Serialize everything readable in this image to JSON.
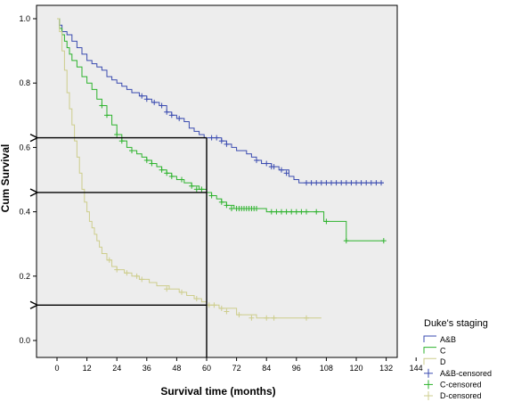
{
  "chart_data": {
    "type": "line",
    "subtype": "kaplan-meier step",
    "title": "",
    "xlabel": "Survival time (months)",
    "ylabel": "Cum Survival",
    "xlim": [
      -6,
      148
    ],
    "ylim": [
      -0.06,
      1.02
    ],
    "xticks": [
      "0",
      "12",
      "24",
      "36",
      "48",
      "60",
      "72",
      "84",
      "96",
      "108",
      "120",
      "132",
      "144"
    ],
    "yticks": [
      "0.0",
      "0.2",
      "0.4",
      "0.6",
      "0.8",
      "1.0"
    ],
    "plot_background": "#ededed",
    "grid": false,
    "legend_title": "Duke's staging",
    "legend_position": "bottom-right outside plot",
    "legend": [
      {
        "label": "A&B",
        "color": "#3a4bb0",
        "marker": "step"
      },
      {
        "label": "C",
        "color": "#2db32d",
        "marker": "step"
      },
      {
        "label": "D",
        "color": "#cdcd8c",
        "marker": "step"
      },
      {
        "label": "A&B-censored",
        "color": "#3a4bb0",
        "marker": "plus"
      },
      {
        "label": "C-censored",
        "color": "#2db32d",
        "marker": "plus"
      },
      {
        "label": "D-censored",
        "color": "#cdcd8c",
        "marker": "plus"
      }
    ],
    "series": [
      {
        "name": "A&B",
        "color": "#3a4bb0",
        "steps": [
          [
            0,
            1.0
          ],
          [
            1,
            0.98
          ],
          [
            2,
            0.96
          ],
          [
            4,
            0.95
          ],
          [
            6,
            0.93
          ],
          [
            8,
            0.91
          ],
          [
            10,
            0.89
          ],
          [
            12,
            0.87
          ],
          [
            14,
            0.86
          ],
          [
            16,
            0.85
          ],
          [
            18,
            0.84
          ],
          [
            20,
            0.82
          ],
          [
            22,
            0.81
          ],
          [
            24,
            0.8
          ],
          [
            26,
            0.79
          ],
          [
            28,
            0.78
          ],
          [
            30,
            0.77
          ],
          [
            33,
            0.76
          ],
          [
            36,
            0.75
          ],
          [
            38,
            0.74
          ],
          [
            41,
            0.73
          ],
          [
            44,
            0.71
          ],
          [
            46,
            0.7
          ],
          [
            48,
            0.69
          ],
          [
            51,
            0.68
          ],
          [
            53,
            0.66
          ],
          [
            55,
            0.65
          ],
          [
            57,
            0.64
          ],
          [
            59,
            0.63
          ],
          [
            66,
            0.62
          ],
          [
            68,
            0.61
          ],
          [
            70,
            0.6
          ],
          [
            72,
            0.59
          ],
          [
            76,
            0.58
          ],
          [
            78,
            0.57
          ],
          [
            80,
            0.56
          ],
          [
            82,
            0.55
          ],
          [
            86,
            0.54
          ],
          [
            89,
            0.53
          ],
          [
            93,
            0.51
          ],
          [
            95,
            0.5
          ],
          [
            97,
            0.49
          ],
          [
            131,
            0.49
          ]
        ],
        "censored": [
          [
            34,
            0.76
          ],
          [
            36,
            0.75
          ],
          [
            39,
            0.74
          ],
          [
            42,
            0.73
          ],
          [
            44,
            0.71
          ],
          [
            46,
            0.7
          ],
          [
            49,
            0.69
          ],
          [
            62,
            0.63
          ],
          [
            64,
            0.63
          ],
          [
            66,
            0.62
          ],
          [
            68,
            0.61
          ],
          [
            80,
            0.56
          ],
          [
            84,
            0.55
          ],
          [
            86,
            0.54
          ],
          [
            87,
            0.54
          ],
          [
            90,
            0.53
          ],
          [
            92,
            0.52
          ],
          [
            100,
            0.49
          ],
          [
            102,
            0.49
          ],
          [
            104,
            0.49
          ],
          [
            106,
            0.49
          ],
          [
            108,
            0.49
          ],
          [
            110,
            0.49
          ],
          [
            112,
            0.49
          ],
          [
            114,
            0.49
          ],
          [
            116,
            0.49
          ],
          [
            118,
            0.49
          ],
          [
            120,
            0.49
          ],
          [
            122,
            0.49
          ],
          [
            124,
            0.49
          ],
          [
            126,
            0.49
          ],
          [
            128,
            0.49
          ],
          [
            130,
            0.49
          ]
        ]
      },
      {
        "name": "C",
        "color": "#2db32d",
        "steps": [
          [
            0,
            1.0
          ],
          [
            1,
            0.97
          ],
          [
            2,
            0.95
          ],
          [
            3,
            0.93
          ],
          [
            4,
            0.91
          ],
          [
            5,
            0.89
          ],
          [
            6,
            0.87
          ],
          [
            8,
            0.85
          ],
          [
            10,
            0.82
          ],
          [
            12,
            0.8
          ],
          [
            14,
            0.78
          ],
          [
            16,
            0.75
          ],
          [
            18,
            0.73
          ],
          [
            20,
            0.7
          ],
          [
            22,
            0.67
          ],
          [
            24,
            0.64
          ],
          [
            26,
            0.62
          ],
          [
            28,
            0.6
          ],
          [
            30,
            0.59
          ],
          [
            32,
            0.58
          ],
          [
            34,
            0.57
          ],
          [
            36,
            0.56
          ],
          [
            38,
            0.55
          ],
          [
            40,
            0.54
          ],
          [
            42,
            0.53
          ],
          [
            44,
            0.52
          ],
          [
            46,
            0.51
          ],
          [
            48,
            0.5
          ],
          [
            51,
            0.49
          ],
          [
            54,
            0.48
          ],
          [
            57,
            0.47
          ],
          [
            60,
            0.46
          ],
          [
            62,
            0.45
          ],
          [
            64,
            0.44
          ],
          [
            66,
            0.43
          ],
          [
            68,
            0.42
          ],
          [
            71,
            0.41
          ],
          [
            76,
            0.41
          ],
          [
            84,
            0.4
          ],
          [
            90,
            0.4
          ],
          [
            98,
            0.4
          ],
          [
            107,
            0.37
          ],
          [
            116,
            0.31
          ],
          [
            131,
            0.31
          ]
        ],
        "censored": [
          [
            18,
            0.73
          ],
          [
            20,
            0.7
          ],
          [
            24,
            0.64
          ],
          [
            26,
            0.62
          ],
          [
            30,
            0.59
          ],
          [
            36,
            0.56
          ],
          [
            38,
            0.55
          ],
          [
            42,
            0.53
          ],
          [
            44,
            0.52
          ],
          [
            46,
            0.51
          ],
          [
            50,
            0.5
          ],
          [
            54,
            0.48
          ],
          [
            56,
            0.47
          ],
          [
            58,
            0.47
          ],
          [
            60,
            0.46
          ],
          [
            62,
            0.45
          ],
          [
            66,
            0.43
          ],
          [
            68,
            0.42
          ],
          [
            70,
            0.41
          ],
          [
            72,
            0.41
          ],
          [
            73,
            0.41
          ],
          [
            74,
            0.41
          ],
          [
            75,
            0.41
          ],
          [
            76,
            0.41
          ],
          [
            77,
            0.41
          ],
          [
            78,
            0.41
          ],
          [
            79,
            0.41
          ],
          [
            80,
            0.41
          ],
          [
            86,
            0.4
          ],
          [
            88,
            0.4
          ],
          [
            90,
            0.4
          ],
          [
            92,
            0.4
          ],
          [
            94,
            0.4
          ],
          [
            96,
            0.4
          ],
          [
            98,
            0.4
          ],
          [
            100,
            0.4
          ],
          [
            104,
            0.4
          ],
          [
            108,
            0.37
          ],
          [
            116,
            0.31
          ],
          [
            131,
            0.31
          ]
        ]
      },
      {
        "name": "D",
        "color": "#cdcd8c",
        "steps": [
          [
            0,
            1.0
          ],
          [
            1,
            0.96
          ],
          [
            2,
            0.9
          ],
          [
            3,
            0.84
          ],
          [
            4,
            0.77
          ],
          [
            5,
            0.72
          ],
          [
            6,
            0.67
          ],
          [
            7,
            0.62
          ],
          [
            8,
            0.57
          ],
          [
            9,
            0.52
          ],
          [
            10,
            0.47
          ],
          [
            11,
            0.43
          ],
          [
            12,
            0.4
          ],
          [
            13,
            0.37
          ],
          [
            14,
            0.35
          ],
          [
            15,
            0.33
          ],
          [
            16,
            0.31
          ],
          [
            17,
            0.29
          ],
          [
            18,
            0.27
          ],
          [
            20,
            0.25
          ],
          [
            22,
            0.23
          ],
          [
            24,
            0.22
          ],
          [
            27,
            0.21
          ],
          [
            30,
            0.2
          ],
          [
            33,
            0.19
          ],
          [
            37,
            0.18
          ],
          [
            40,
            0.17
          ],
          [
            45,
            0.16
          ],
          [
            49,
            0.15
          ],
          [
            52,
            0.14
          ],
          [
            55,
            0.13
          ],
          [
            58,
            0.12
          ],
          [
            60,
            0.11
          ],
          [
            63,
            0.11
          ],
          [
            65,
            0.1
          ],
          [
            72,
            0.08
          ],
          [
            80,
            0.07
          ],
          [
            90,
            0.07
          ],
          [
            106,
            0.07
          ]
        ],
        "censored": [
          [
            21,
            0.25
          ],
          [
            24,
            0.22
          ],
          [
            28,
            0.21
          ],
          [
            32,
            0.2
          ],
          [
            34,
            0.19
          ],
          [
            44,
            0.16
          ],
          [
            50,
            0.15
          ],
          [
            56,
            0.13
          ],
          [
            61,
            0.11
          ],
          [
            63,
            0.11
          ],
          [
            66,
            0.1
          ],
          [
            68,
            0.09
          ],
          [
            73,
            0.08
          ],
          [
            78,
            0.07
          ],
          [
            84,
            0.07
          ],
          [
            87,
            0.07
          ],
          [
            100,
            0.07
          ]
        ]
      }
    ],
    "reference_lines": [
      {
        "type": "vertical",
        "x": 60,
        "y_from": 0,
        "y_to": 0.63
      },
      {
        "type": "arrow-left",
        "y": 0.63,
        "x_from": 60,
        "x_to": -6
      },
      {
        "type": "arrow-left",
        "y": 0.46,
        "x_from": 60,
        "x_to": -6
      },
      {
        "type": "arrow-left",
        "y": 0.11,
        "x_from": 60,
        "x_to": -6
      }
    ]
  }
}
